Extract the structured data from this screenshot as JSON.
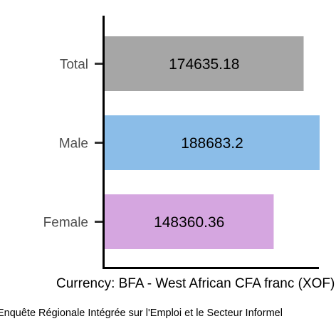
{
  "chart_data": {
    "type": "bar",
    "orientation": "horizontal",
    "categories": [
      "Total",
      "Male",
      "Female"
    ],
    "values": [
      174635.18,
      188683.2,
      148360.36
    ],
    "data_labels": [
      "174635.18",
      "188683.2",
      "148360.36"
    ],
    "colors": [
      "#a6a6a6",
      "#8bbde8",
      "#d5a6e0"
    ],
    "xlabel": "Currency: BFA - West African CFA franc (XOF)",
    "ylabel": "",
    "xlim": [
      0,
      188683.2
    ],
    "grid": false,
    "legend": "none"
  },
  "caption": "Enquête Régionale Intégrée sur l'Emploi et le Secteur Informel"
}
